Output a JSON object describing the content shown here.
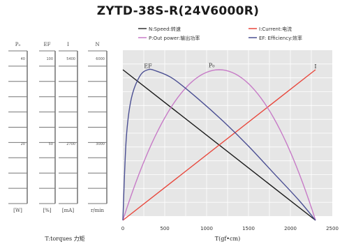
{
  "chart_data": {
    "type": "line",
    "title": "ZYTD-38S-R(24V6000R)",
    "xlabel": "T(gf•cm)",
    "xlim": [
      0,
      2500
    ],
    "x_ticks": [
      "0",
      "500",
      "1000",
      "1500",
      "2000",
      "2500"
    ],
    "legend": [
      {
        "label": "N:Speed:转速",
        "color": "#333333"
      },
      {
        "label": "I:Current:电流",
        "color": "#e8473c"
      },
      {
        "label": "P:Out power:输出功率",
        "color": "#c77bc7"
      },
      {
        "label": "EF: Efficiency:效率",
        "color": "#4b4f93"
      }
    ],
    "series": [
      {
        "name": "N",
        "color": "#1a1a1a",
        "x": [
          0,
          2300
        ],
        "y": [
          6000,
          0
        ]
      },
      {
        "name": "I",
        "color": "#e8473c",
        "x": [
          0,
          2300
        ],
        "y": [
          0,
          2700
        ]
      },
      {
        "name": "P",
        "color": "#c77bc7",
        "x": [
          0,
          230,
          460,
          690,
          920,
          1150,
          1380,
          1610,
          1840,
          2070,
          2300
        ],
        "y": [
          0,
          4.9,
          8.7,
          11.4,
          13.0,
          13.5,
          13.0,
          11.4,
          8.7,
          4.9,
          0
        ]
      },
      {
        "name": "EF",
        "color": "#4b4f93",
        "x": [
          0,
          40,
          100,
          200,
          300,
          400,
          600,
          900,
          1200,
          1500,
          1800,
          2100,
          2300
        ],
        "y": [
          0,
          18,
          27,
          32,
          33.5,
          33.2,
          31.5,
          27,
          22,
          16.5,
          10.5,
          4.5,
          0
        ]
      }
    ],
    "series_labels": [
      {
        "text": "EF",
        "x": 300,
        "y": 33.6,
        "series": "EF"
      },
      {
        "text": "P₀",
        "x": 1060,
        "y": 13.6,
        "series": "P"
      },
      {
        "text": "I",
        "x": 2300,
        "y": 2700,
        "series": "I"
      }
    ],
    "left_axes": [
      {
        "header": "P₀",
        "unit": "[W]",
        "top_value": "40",
        "mid_value": "20",
        "max": 40,
        "color": "#c77bc7"
      },
      {
        "header": "EF",
        "unit": "[%]",
        "top_value": "100",
        "mid_value": "50",
        "max": 100,
        "color": "#4b4f93"
      },
      {
        "header": "I",
        "unit": "[mA]",
        "top_value": "5400",
        "mid_value": "2700",
        "max": 5400,
        "color": "#e8473c"
      },
      {
        "header": "N",
        "unit": "r/min",
        "top_value": "6000",
        "mid_value": "3000",
        "max": 6000,
        "color": "#1a1a1a"
      }
    ],
    "left_xlabel": "T:torques 力矩",
    "grid": true
  }
}
